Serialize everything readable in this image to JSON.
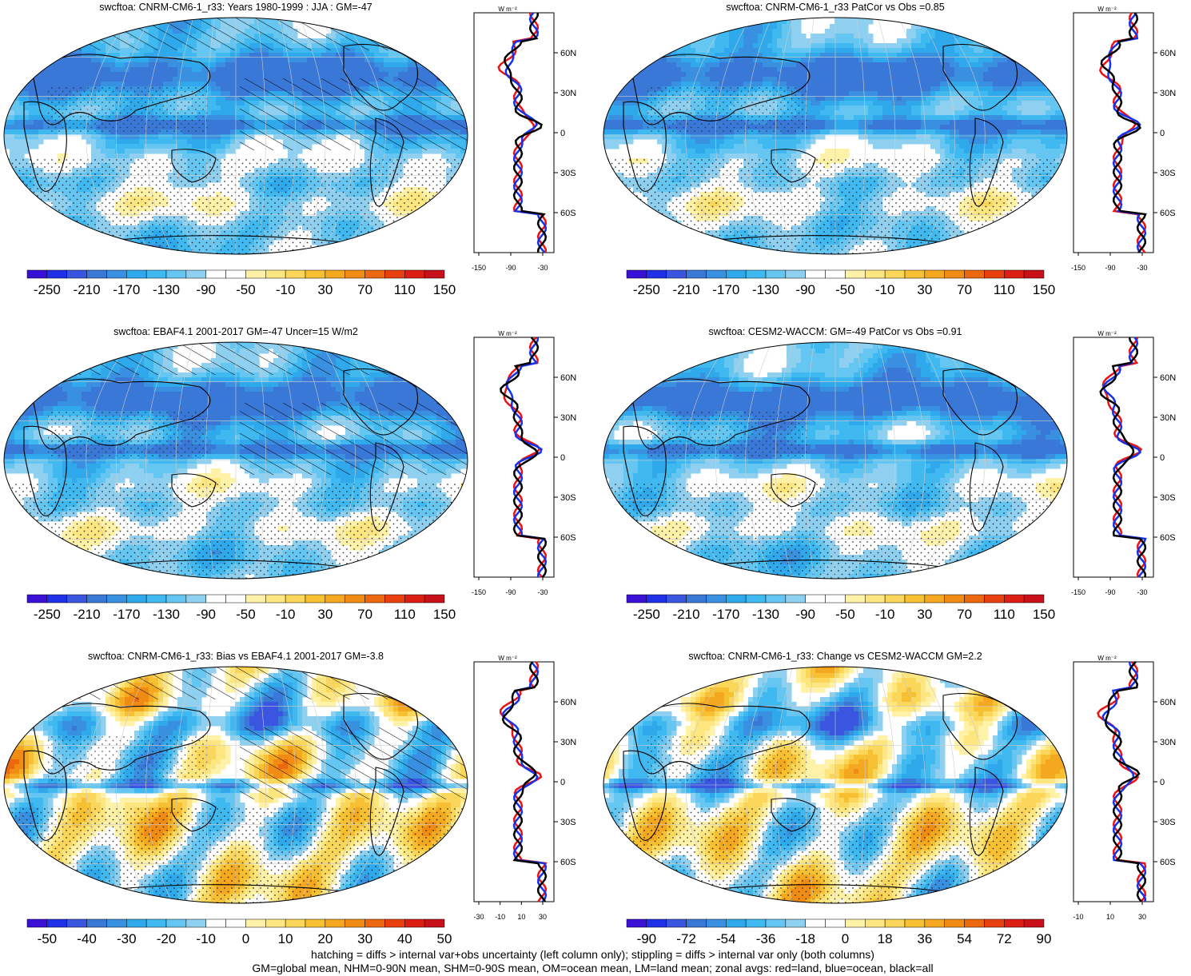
{
  "panels": [
    {
      "title": "swcftoa: CNRM-CM6-1_r33: Years 1980-1999 : JJA : GM=-47",
      "cbar": "main",
      "zonal": "main",
      "hatch": true,
      "bias": false,
      "mode": "cld"
    },
    {
      "title": "swcftoa: CNRM-CM6-1_r33 PatCor vs Obs =0.85",
      "cbar": "main",
      "zonal": "main",
      "hatch": false,
      "bias": false,
      "mode": "cld"
    },
    {
      "title": "swcftoa: EBAF4.1 2001-2017 GM=-47 Uncer=15 W/m2",
      "cbar": "main",
      "zonal": "main",
      "hatch": true,
      "bias": false,
      "mode": "cld"
    },
    {
      "title": "swcftoa: CESM2-WACCM: GM=-49 PatCor vs Obs =0.91",
      "cbar": "main",
      "zonal": "main",
      "hatch": false,
      "bias": false,
      "mode": "cld"
    },
    {
      "title": "swcftoa: CNRM-CM6-1_r33: Bias vs EBAF4.1 2001-2017 GM=-3.8",
      "cbar": "bias",
      "zonal": "bias",
      "hatch": true,
      "bias": true,
      "mode": "bias"
    },
    {
      "title": "swcftoa: CNRM-CM6-1_r33: Change vs CESM2-WACCM GM=2.2",
      "cbar": "change",
      "zonal": "change",
      "hatch": false,
      "bias": true,
      "mode": "change"
    }
  ],
  "colorbars": {
    "main": {
      "labels": [
        "-250",
        "-210",
        "-170",
        "-130",
        "-90",
        "-50",
        "-10",
        "30",
        "70",
        "110",
        "150"
      ]
    },
    "bias": {
      "labels": [
        "-50",
        "-40",
        "-30",
        "-20",
        "-10",
        "0",
        "10",
        "20",
        "30",
        "40",
        "50"
      ]
    },
    "change": {
      "labels": [
        "-90",
        "-72",
        "-54",
        "-36",
        "-18",
        "0",
        "18",
        "36",
        "54",
        "72",
        "90"
      ]
    }
  },
  "zonal_axes": {
    "units": "W m⁻²",
    "lat_labels": [
      "60N",
      "30N",
      "0",
      "30S",
      "60S"
    ],
    "main": {
      "xticks": [
        "-150",
        "-90",
        "-30"
      ]
    },
    "bias": {
      "xticks": [
        "-30",
        "-10",
        "10",
        "30"
      ]
    },
    "change": {
      "xticks": [
        "-10",
        "10",
        "30"
      ]
    }
  },
  "colors": {
    "ramp": [
      "#3a0fd6",
      "#2030e6",
      "#3a55e0",
      "#3a78d8",
      "#3a90e0",
      "#30a8ec",
      "#40b8f0",
      "#66c6f2",
      "#8fd0f0",
      "#ffffff",
      "#ffffff",
      "#fff2a8",
      "#fde680",
      "#fad65a",
      "#f6c032",
      "#f4a820",
      "#f08c14",
      "#ec6810",
      "#e8400e",
      "#dc1e14",
      "#c8101a"
    ],
    "red": "#ee1111",
    "blue": "#1133ee",
    "black": "#000000"
  },
  "footer": {
    "line1": "hatching = diffs > internal var+obs uncertainty (left column only); stippling = diffs > internal var only (both columns)",
    "line2": "GM=global mean, NHM=0-90N mean, SHM=0-90S mean, OM=ocean mean, LM=land mean; zonal avgs: red=land, blue=ocean, black=all"
  }
}
